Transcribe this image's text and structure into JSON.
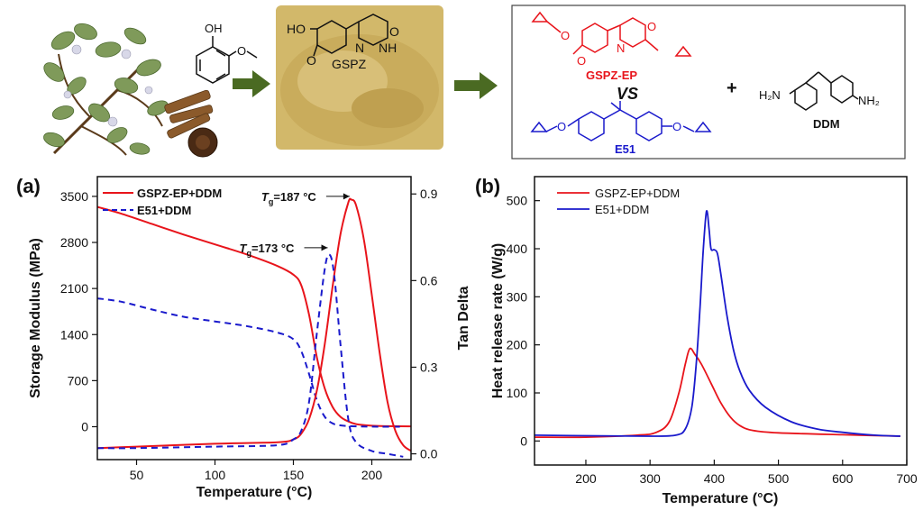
{
  "scheme": {
    "photo_label": "GSPZ",
    "product_top_label": "GSPZ-EP",
    "versus": "VS",
    "product_bottom_label": "E51",
    "plus": "+",
    "hardener_label": "DDM",
    "atoms": {
      "OH": "OH",
      "HO": "HO",
      "O": "O",
      "N": "N",
      "NH": "NH",
      "H2N": "H₂N",
      "NH2": "NH₂"
    },
    "colors": {
      "red": "#e8141b",
      "blue": "#1a1acc",
      "black": "#111111",
      "arrow": "#4a6a22"
    }
  },
  "chart_data": [
    {
      "panel_label": "(a)",
      "type": "line",
      "xlabel": "Temperature (°C)",
      "ylabel_left": "Storage Modulus (MPa)",
      "ylabel_right": "Tan Delta",
      "xlim": [
        25,
        225
      ],
      "ylim_left": [
        -500,
        3800
      ],
      "ylim_right": [
        -0.02,
        0.96
      ],
      "xticks": [
        50,
        100,
        150,
        200
      ],
      "yticks_left": [
        0,
        700,
        1400,
        2100,
        2800,
        3500
      ],
      "yticks_right": [
        0.0,
        0.3,
        0.6,
        0.9
      ],
      "legend_position": "top-left",
      "series": [
        {
          "name": "GSPZ-EP+DDM",
          "axis": "left",
          "quantity": "storage modulus",
          "color": "#e8141b",
          "dash": "solid",
          "x": [
            25,
            40,
            60,
            80,
            100,
            120,
            140,
            150,
            155,
            160,
            165,
            170,
            175,
            180,
            185,
            190,
            200,
            210,
            225
          ],
          "values": [
            3340,
            3240,
            3080,
            2920,
            2770,
            2620,
            2440,
            2310,
            2150,
            1700,
            1050,
            580,
            300,
            150,
            80,
            40,
            15,
            8,
            5
          ]
        },
        {
          "name": "E51+DDM",
          "axis": "left",
          "quantity": "storage modulus",
          "color": "#1a1acc",
          "dash": "dashed",
          "x": [
            25,
            40,
            60,
            80,
            100,
            120,
            140,
            150,
            155,
            160,
            165,
            170,
            175,
            180,
            190,
            205,
            220
          ],
          "values": [
            1950,
            1900,
            1780,
            1670,
            1600,
            1530,
            1430,
            1330,
            1150,
            800,
            400,
            150,
            50,
            20,
            5,
            0,
            0
          ]
        },
        {
          "name": "GSPZ-EP+DDM",
          "axis": "right",
          "quantity": "tan delta",
          "color": "#e8141b",
          "dash": "solid",
          "x": [
            25,
            50,
            100,
            140,
            150,
            155,
            160,
            165,
            170,
            175,
            180,
            185,
            187,
            190,
            195,
            200,
            205,
            210,
            215,
            220,
            225
          ],
          "values": [
            0.02,
            0.025,
            0.035,
            0.04,
            0.05,
            0.07,
            0.12,
            0.22,
            0.38,
            0.58,
            0.76,
            0.87,
            0.88,
            0.86,
            0.74,
            0.55,
            0.35,
            0.18,
            0.08,
            0.03,
            0.01
          ]
        },
        {
          "name": "E51+DDM",
          "axis": "right",
          "quantity": "tan delta",
          "color": "#1a1acc",
          "dash": "dashed",
          "x": [
            25,
            50,
            100,
            140,
            150,
            155,
            160,
            165,
            170,
            173,
            176,
            180,
            185,
            190,
            200,
            210,
            220
          ],
          "values": [
            0.02,
            0.02,
            0.025,
            0.03,
            0.05,
            0.08,
            0.18,
            0.42,
            0.64,
            0.69,
            0.62,
            0.38,
            0.12,
            0.04,
            0.01,
            0.0,
            -0.01
          ]
        }
      ],
      "annotations": [
        {
          "text_italic": "T",
          "subscript": "g",
          "text": "=187 °C",
          "x": 187,
          "y": 3500,
          "axis": "left"
        },
        {
          "text_italic": "T",
          "subscript": "g",
          "text": "=173 °C",
          "x": 173,
          "y": 2720,
          "axis": "left"
        }
      ]
    },
    {
      "panel_label": "(b)",
      "type": "line",
      "xlabel": "Temperature (°C)",
      "ylabel": "Heat release rate (W/g)",
      "xlim": [
        120,
        700
      ],
      "ylim": [
        -50,
        550
      ],
      "xticks": [
        200,
        300,
        400,
        500,
        600,
        700
      ],
      "yticks": [
        0,
        100,
        200,
        300,
        400,
        500
      ],
      "legend_position": "top-left",
      "series": [
        {
          "name": "GSPZ-EP+DDM",
          "color": "#e8141b",
          "x": [
            120,
            200,
            280,
            310,
            330,
            345,
            355,
            362,
            370,
            380,
            395,
            410,
            425,
            440,
            460,
            500,
            600,
            690
          ],
          "values": [
            8,
            8,
            12,
            18,
            40,
            100,
            160,
            192,
            180,
            160,
            120,
            80,
            50,
            32,
            22,
            17,
            13,
            10
          ]
        },
        {
          "name": "E51+DDM",
          "color": "#1a1acc",
          "x": [
            120,
            200,
            300,
            340,
            355,
            365,
            372,
            378,
            383,
            388,
            392,
            395,
            400,
            405,
            410,
            420,
            430,
            440,
            455,
            480,
            520,
            560,
            600,
            650,
            690
          ],
          "values": [
            12,
            11,
            10,
            12,
            25,
            70,
            160,
            280,
            400,
            478,
            440,
            400,
            398,
            390,
            350,
            260,
            190,
            145,
            105,
            70,
            40,
            25,
            18,
            12,
            10
          ]
        }
      ]
    }
  ]
}
